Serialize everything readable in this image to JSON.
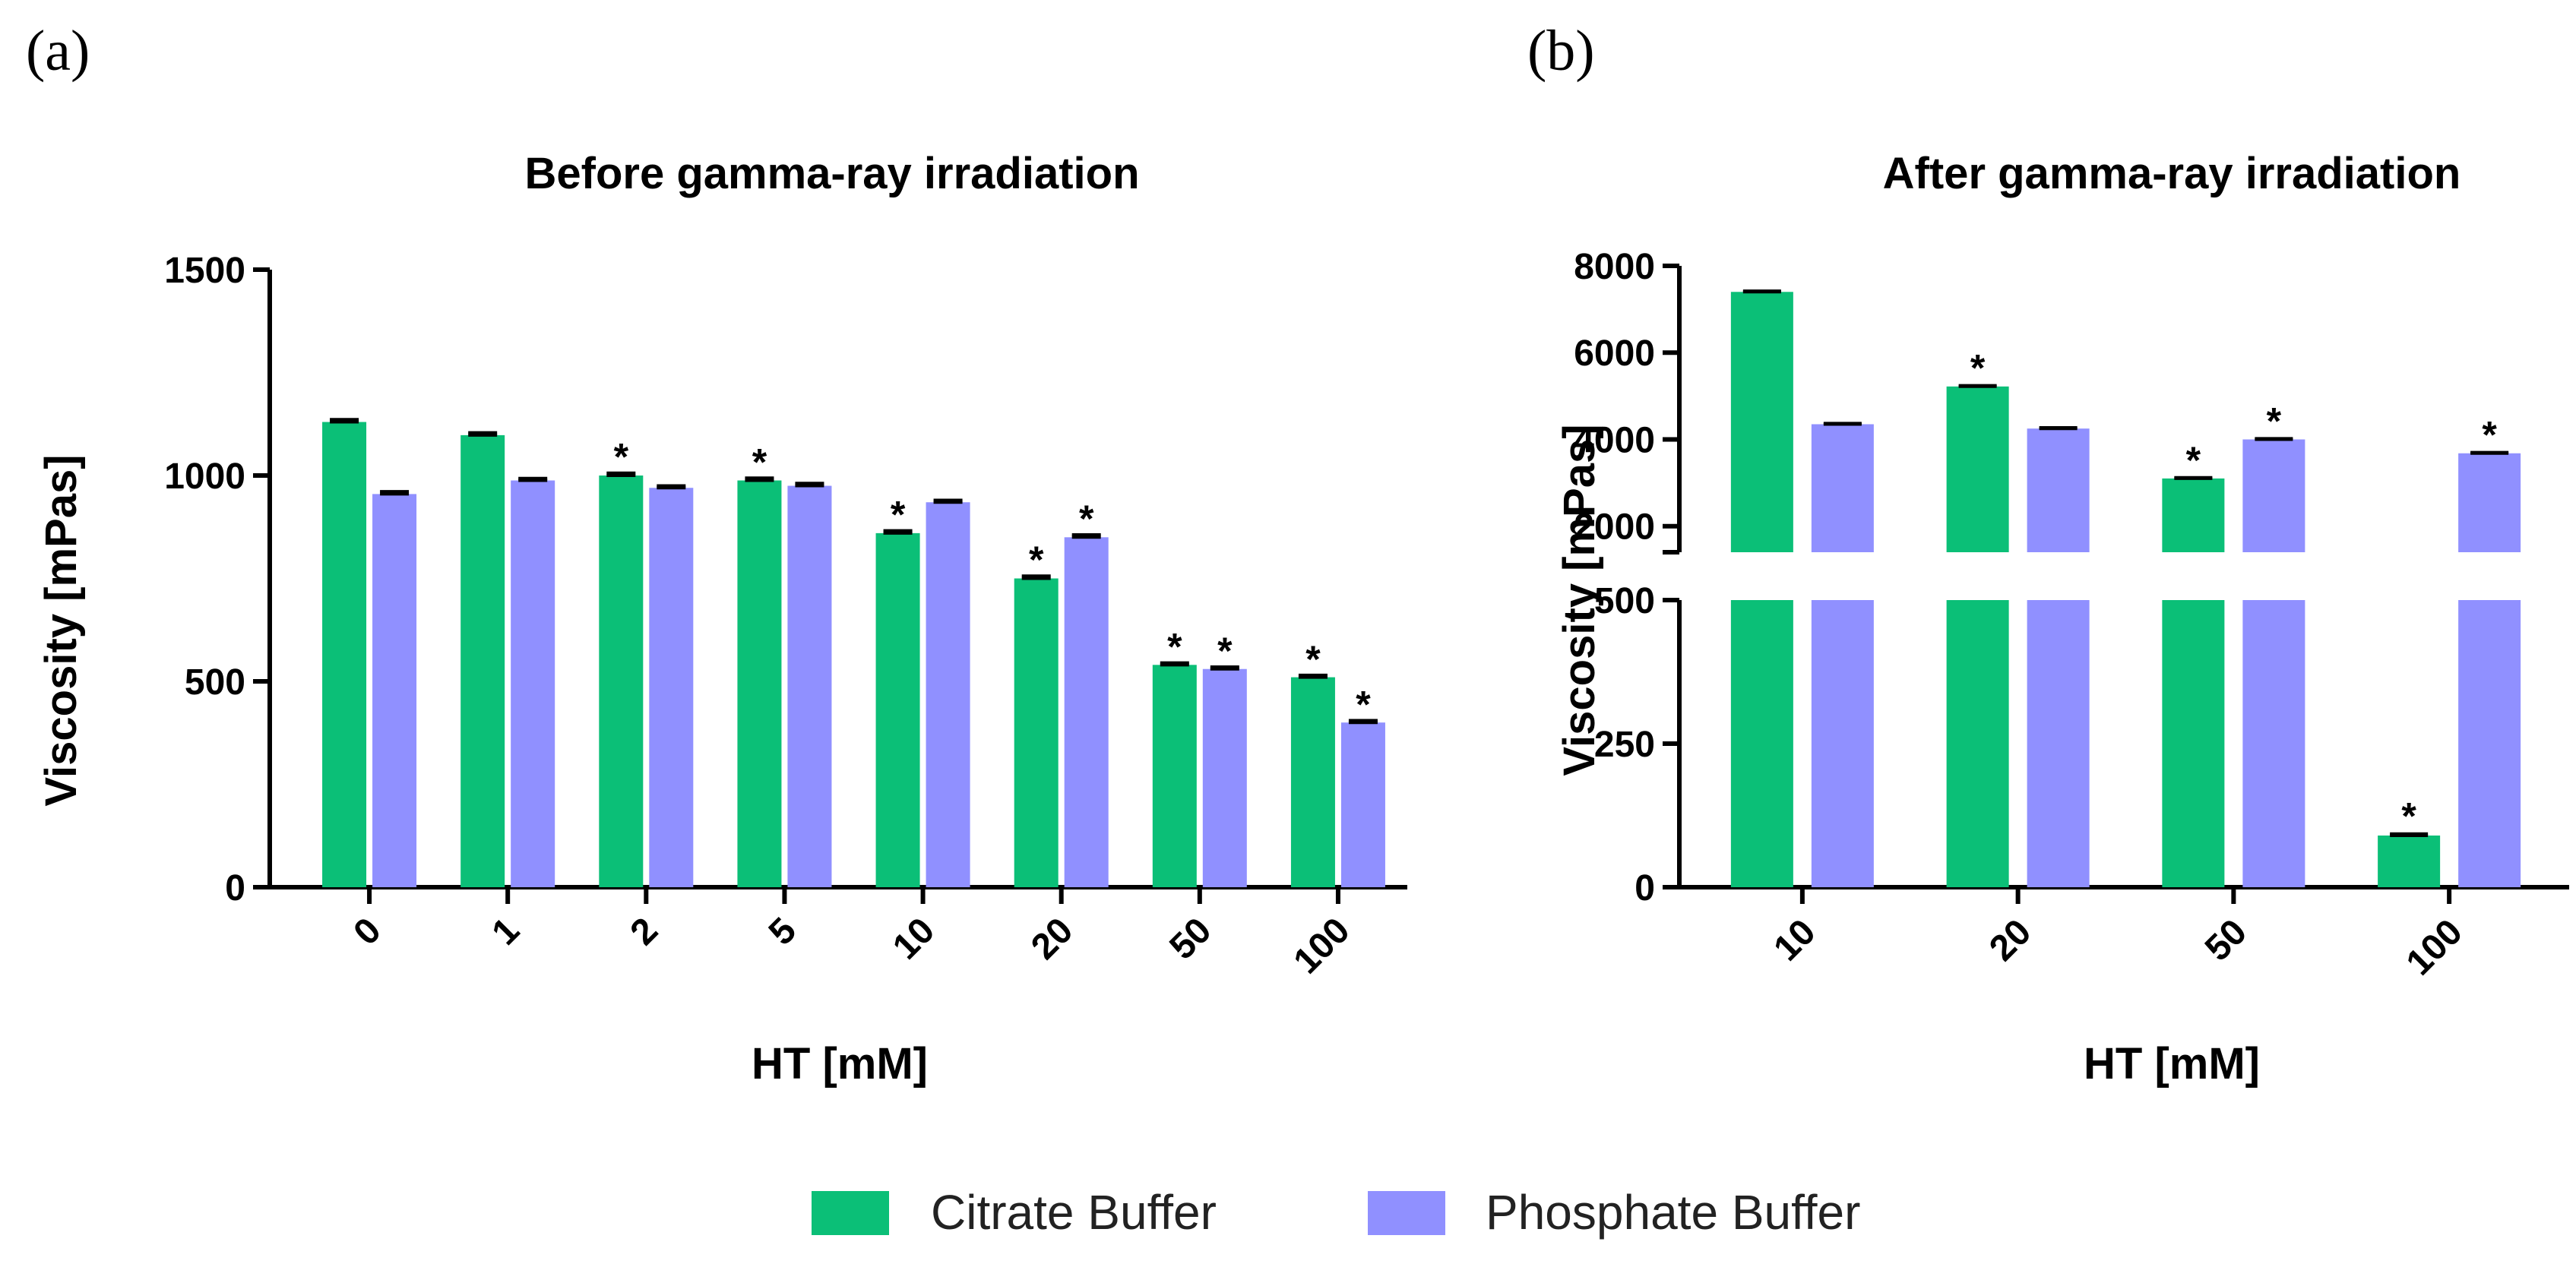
{
  "colors": {
    "citrate": "#0BBF77",
    "phosphate": "#9090FF"
  },
  "legend": [
    {
      "key": "citrate",
      "label": "Citrate Buffer"
    },
    {
      "key": "phosphate",
      "label": "Phosphate Buffer"
    }
  ],
  "chart_data": [
    {
      "type": "bar",
      "panel_label": "(a)",
      "title": "Before gamma-ray irradiation",
      "xlabel": "HT [mM]",
      "ylabel": "Viscosity [mPas]",
      "ylim": [
        0,
        1500
      ],
      "yticks": [
        0,
        500,
        1000,
        1500
      ],
      "categories": [
        "0",
        "1",
        "2",
        "5",
        "10",
        "20",
        "50",
        "100"
      ],
      "series": [
        {
          "name": "Citrate Buffer",
          "key": "citrate",
          "values": [
            1130,
            1098,
            1000,
            988,
            860,
            750,
            540,
            510
          ],
          "errors": [
            6,
            6,
            6,
            6,
            6,
            6,
            5,
            5
          ],
          "significant": [
            false,
            false,
            true,
            true,
            true,
            true,
            true,
            true
          ]
        },
        {
          "name": "Phosphate Buffer",
          "key": "phosphate",
          "values": [
            955,
            988,
            970,
            975,
            935,
            850,
            530,
            400
          ],
          "errors": [
            6,
            5,
            5,
            6,
            5,
            6,
            5,
            5
          ],
          "significant": [
            false,
            false,
            false,
            false,
            false,
            true,
            true,
            true
          ]
        }
      ]
    },
    {
      "type": "bar",
      "panel_label": "(b)",
      "title": "After gamma-ray irradiation",
      "xlabel": "HT [mM]",
      "ylabel": "Viscosity [mPas]",
      "broken_axis": true,
      "lower_ylim": [
        0,
        500
      ],
      "upper_ylim": [
        1400,
        8000
      ],
      "lower_yticks": [
        0,
        250,
        500
      ],
      "upper_yticks": [
        2000,
        4000,
        6000,
        8000
      ],
      "categories": [
        "10",
        "20",
        "50",
        "100"
      ],
      "series": [
        {
          "name": "Citrate Buffer",
          "key": "citrate",
          "values": [
            7400,
            5220,
            3100,
            90
          ],
          "errors": [
            20,
            20,
            20,
            3
          ],
          "significant": [
            false,
            true,
            true,
            true
          ]
        },
        {
          "name": "Phosphate Buffer",
          "key": "phosphate",
          "values": [
            4350,
            4250,
            4000,
            3680
          ],
          "errors": [
            20,
            20,
            20,
            20
          ],
          "significant": [
            false,
            false,
            true,
            true
          ]
        }
      ]
    }
  ]
}
